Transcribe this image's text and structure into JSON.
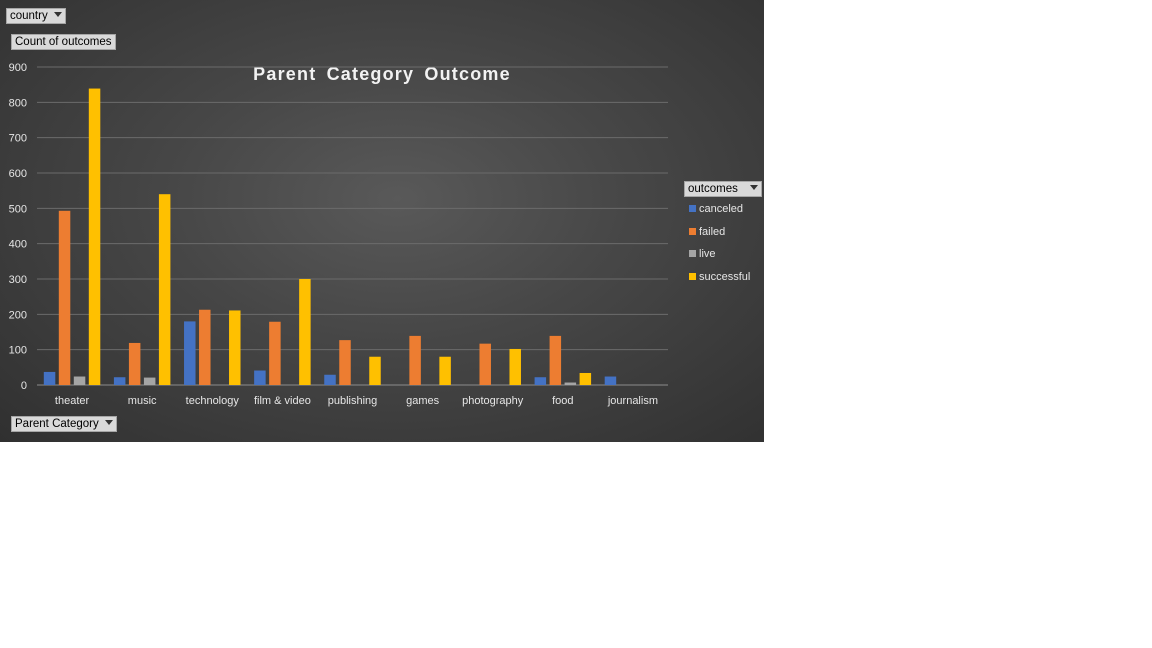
{
  "filters": {
    "country_label": "country",
    "y_field_label": "Count of outcomes",
    "x_field_label": "Parent Category",
    "legend_field_label": "outcomes"
  },
  "chart_data": {
    "type": "bar",
    "title": "Parent Category Outcome",
    "xlabel": "",
    "ylabel": "",
    "ylim": [
      0,
      900
    ],
    "yticks": [
      0,
      100,
      200,
      300,
      400,
      500,
      600,
      700,
      800,
      900
    ],
    "grid": true,
    "legend_position": "right",
    "categories": [
      "theater",
      "music",
      "technology",
      "film & video",
      "publishing",
      "games",
      "photography",
      "food",
      "journalism"
    ],
    "series": [
      {
        "name": "canceled",
        "color": "#4472c4",
        "values": [
          37,
          22,
          180,
          41,
          29,
          0,
          0,
          22,
          24
        ]
      },
      {
        "name": "failed",
        "color": "#ed7d31",
        "values": [
          493,
          119,
          213,
          179,
          127,
          139,
          117,
          139,
          0
        ]
      },
      {
        "name": "live",
        "color": "#a5a5a5",
        "values": [
          24,
          21,
          0,
          0,
          0,
          0,
          0,
          7,
          0
        ]
      },
      {
        "name": "successful",
        "color": "#ffc000",
        "values": [
          839,
          540,
          211,
          300,
          80,
          80,
          102,
          34,
          0
        ]
      }
    ]
  }
}
